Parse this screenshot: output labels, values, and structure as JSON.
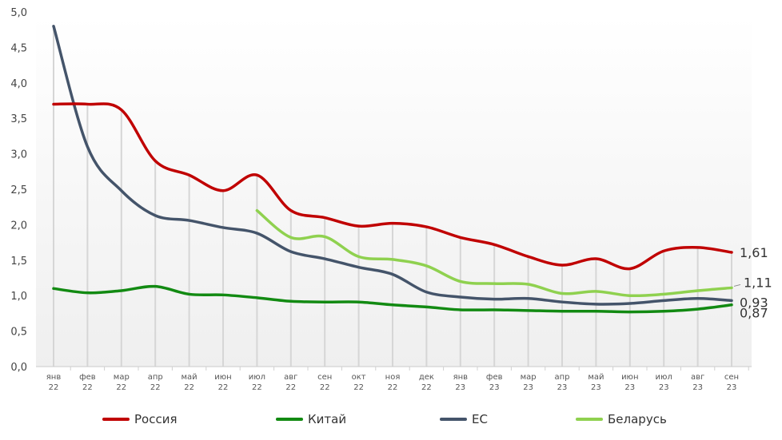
{
  "chart_data": {
    "type": "line",
    "title": "",
    "xlabel": "",
    "ylabel": "",
    "ylim": [
      0,
      5
    ],
    "yticks": [
      "0,0",
      "0,5",
      "1,0",
      "1,5",
      "2,0",
      "2,5",
      "3,0",
      "3,5",
      "4,0",
      "4,5",
      "5,0"
    ],
    "grid": "vertical",
    "legend": "bottom",
    "categories": [
      [
        "янв",
        "22"
      ],
      [
        "фев",
        "22"
      ],
      [
        "мар",
        "22"
      ],
      [
        "апр",
        "22"
      ],
      [
        "май",
        "22"
      ],
      [
        "июн",
        "22"
      ],
      [
        "июл",
        "22"
      ],
      [
        "авг",
        "22"
      ],
      [
        "сен",
        "22"
      ],
      [
        "окт",
        "22"
      ],
      [
        "ноя",
        "22"
      ],
      [
        "дек",
        "22"
      ],
      [
        "янв",
        "23"
      ],
      [
        "фев",
        "23"
      ],
      [
        "мар",
        "23"
      ],
      [
        "апр",
        "23"
      ],
      [
        "май",
        "23"
      ],
      [
        "июн",
        "23"
      ],
      [
        "июл",
        "23"
      ],
      [
        "авг",
        "23"
      ],
      [
        "сен",
        "23"
      ]
    ],
    "series": [
      {
        "name": "Россия",
        "color": "#c00000",
        "end_label": "1,61",
        "values": [
          3.7,
          3.7,
          3.62,
          2.9,
          2.7,
          2.48,
          2.7,
          2.2,
          2.1,
          1.98,
          2.02,
          1.97,
          1.82,
          1.72,
          1.55,
          1.43,
          1.52,
          1.38,
          1.63,
          1.68,
          1.61
        ]
      },
      {
        "name": "Китай",
        "color": "#128a12",
        "end_label": "0,87",
        "values": [
          1.1,
          1.04,
          1.07,
          1.13,
          1.02,
          1.01,
          0.97,
          0.92,
          0.91,
          0.91,
          0.87,
          0.84,
          0.8,
          0.8,
          0.79,
          0.78,
          0.78,
          0.77,
          0.78,
          0.81,
          0.87
        ]
      },
      {
        "name": "ЕС",
        "color": "#44546a",
        "end_label": "0,93",
        "values": [
          4.8,
          3.1,
          2.48,
          2.13,
          2.06,
          1.96,
          1.88,
          1.62,
          1.52,
          1.4,
          1.3,
          1.05,
          0.98,
          0.95,
          0.96,
          0.91,
          0.88,
          0.89,
          0.93,
          0.96,
          0.93
        ]
      },
      {
        "name": "Беларусь",
        "color": "#8fd14f",
        "end_label": "1,11",
        "values": [
          null,
          null,
          null,
          null,
          null,
          null,
          2.2,
          1.82,
          1.83,
          1.55,
          1.51,
          1.42,
          1.2,
          1.17,
          1.16,
          1.03,
          1.06,
          1.0,
          1.02,
          1.07,
          1.11
        ]
      }
    ]
  }
}
